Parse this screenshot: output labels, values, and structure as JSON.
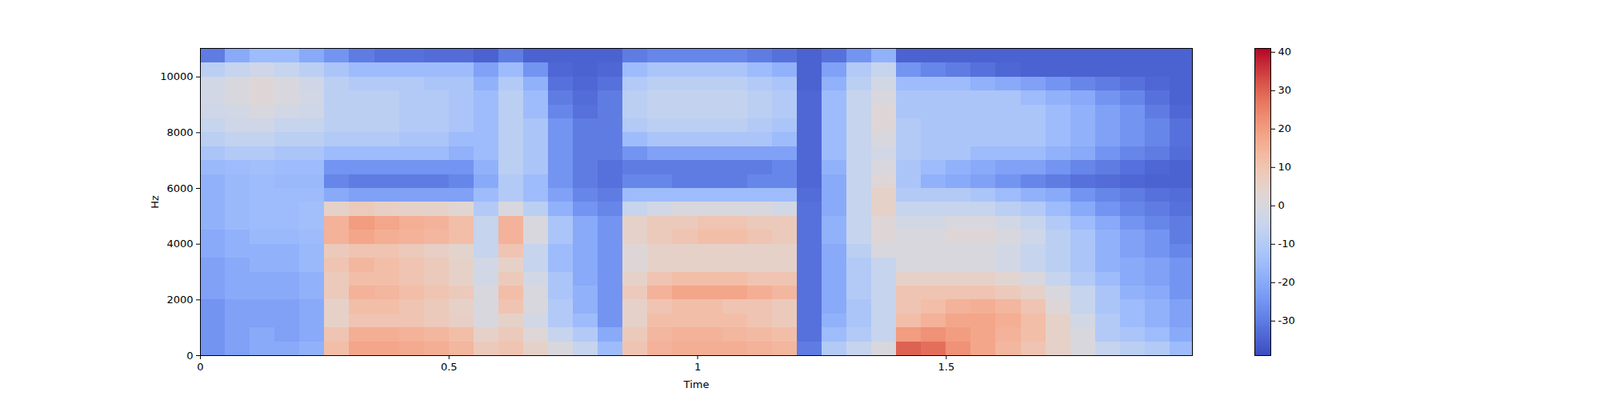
{
  "chart_data": {
    "type": "heatmap",
    "xlabel": "Time",
    "ylabel": "Hz",
    "xlim": [
      0,
      1.995
    ],
    "xticks": [
      0,
      0.5,
      1,
      1.5
    ],
    "ylim": [
      0,
      11025
    ],
    "yticks": [
      0,
      2000,
      4000,
      6000,
      8000,
      10000
    ],
    "time_bins": [
      0,
      0.05,
      0.1,
      0.15,
      0.2,
      0.25,
      0.3,
      0.35,
      0.4,
      0.45,
      0.5,
      0.55,
      0.6,
      0.65,
      0.7,
      0.75,
      0.8,
      0.85,
      0.9,
      0.95,
      1.0,
      1.05,
      1.1,
      1.15,
      1.2,
      1.25,
      1.3,
      1.35,
      1.4,
      1.45,
      1.5,
      1.55,
      1.6,
      1.65,
      1.7,
      1.75,
      1.8,
      1.85,
      1.9,
      1.95,
      1.995
    ],
    "freq_bins": [
      0,
      500,
      1000,
      1500,
      2000,
      2500,
      3000,
      3500,
      4000,
      4500,
      5000,
      5500,
      6000,
      6500,
      7000,
      7500,
      8000,
      8500,
      9000,
      9500,
      10000,
      10500,
      11025
    ],
    "cells": [
      [
        -25,
        -22,
        -20,
        -20,
        -18,
        12,
        18,
        18,
        17,
        16,
        14,
        8,
        10,
        5,
        0,
        -5,
        -15,
        10,
        15,
        16,
        16,
        16,
        15,
        14,
        -30,
        -10,
        -5,
        0,
        30,
        28,
        22,
        18,
        14,
        10,
        5,
        0,
        -5,
        -8,
        -10,
        -15
      ],
      [
        -25,
        -22,
        -20,
        -22,
        -20,
        10,
        16,
        16,
        15,
        14,
        12,
        5,
        8,
        2,
        -5,
        -10,
        -20,
        8,
        14,
        15,
        15,
        14,
        13,
        12,
        -32,
        -15,
        -10,
        -5,
        20,
        22,
        20,
        18,
        15,
        12,
        5,
        0,
        -10,
        -12,
        -15,
        -20
      ],
      [
        -25,
        -22,
        -22,
        -22,
        -20,
        5,
        10,
        10,
        10,
        8,
        6,
        0,
        5,
        -2,
        -10,
        -15,
        -25,
        5,
        12,
        12,
        12,
        12,
        10,
        8,
        -32,
        -18,
        -12,
        -5,
        12,
        15,
        18,
        18,
        16,
        12,
        5,
        -2,
        -10,
        -15,
        -18,
        -22
      ],
      [
        -25,
        -22,
        -22,
        -22,
        -20,
        5,
        12,
        12,
        10,
        8,
        5,
        0,
        10,
        0,
        -10,
        -18,
        -25,
        5,
        10,
        12,
        12,
        10,
        10,
        8,
        -32,
        -20,
        -12,
        -5,
        10,
        12,
        15,
        16,
        14,
        10,
        2,
        -5,
        -12,
        -15,
        -18,
        -22
      ],
      [
        -22,
        -20,
        -20,
        -20,
        -18,
        8,
        15,
        14,
        12,
        10,
        8,
        0,
        12,
        0,
        -12,
        -18,
        -25,
        8,
        15,
        18,
        18,
        18,
        16,
        14,
        -32,
        -20,
        -10,
        -5,
        10,
        10,
        10,
        10,
        8,
        5,
        0,
        -5,
        -12,
        -18,
        -20,
        -25
      ],
      [
        -22,
        -20,
        -20,
        -20,
        -18,
        8,
        12,
        12,
        10,
        8,
        5,
        -2,
        8,
        -2,
        -12,
        -20,
        -25,
        5,
        10,
        12,
        12,
        12,
        10,
        10,
        -32,
        -20,
        -10,
        -5,
        5,
        5,
        5,
        5,
        3,
        0,
        -5,
        -10,
        -15,
        -20,
        -22,
        -25
      ],
      [
        -22,
        -20,
        -18,
        -18,
        -16,
        10,
        14,
        12,
        10,
        8,
        5,
        -2,
        5,
        -5,
        -15,
        -20,
        -25,
        2,
        5,
        5,
        5,
        5,
        5,
        5,
        -32,
        -20,
        -10,
        -5,
        0,
        0,
        0,
        0,
        -2,
        -5,
        -8,
        -12,
        -18,
        -20,
        -22,
        -25
      ],
      [
        -20,
        -18,
        -18,
        -18,
        -16,
        8,
        10,
        10,
        8,
        6,
        4,
        -5,
        10,
        -5,
        -15,
        -20,
        -25,
        2,
        5,
        5,
        5,
        5,
        5,
        5,
        -32,
        -20,
        -8,
        0,
        0,
        0,
        0,
        0,
        -2,
        -5,
        -8,
        -12,
        -18,
        -22,
        -25,
        -28
      ],
      [
        -20,
        -18,
        -16,
        -16,
        -15,
        15,
        18,
        16,
        15,
        14,
        12,
        -5,
        15,
        0,
        -12,
        -20,
        -25,
        5,
        8,
        10,
        12,
        12,
        10,
        8,
        -32,
        -18,
        -5,
        2,
        0,
        0,
        2,
        2,
        0,
        -3,
        -8,
        -12,
        -18,
        -22,
        -25,
        -30
      ],
      [
        -18,
        -16,
        -15,
        -15,
        -14,
        15,
        20,
        18,
        16,
        15,
        12,
        -5,
        15,
        0,
        -12,
        -20,
        -25,
        5,
        8,
        8,
        10,
        10,
        8,
        8,
        -32,
        -18,
        -5,
        2,
        -2,
        -2,
        0,
        0,
        -2,
        -5,
        -10,
        -15,
        -20,
        -25,
        -28,
        -30
      ],
      [
        -18,
        -16,
        -15,
        -15,
        -14,
        5,
        8,
        6,
        5,
        5,
        3,
        -10,
        0,
        -8,
        -18,
        -25,
        -28,
        -5,
        -2,
        0,
        0,
        0,
        0,
        -2,
        -32,
        -20,
        -5,
        5,
        -5,
        -5,
        -5,
        -5,
        -8,
        -10,
        -15,
        -20,
        -25,
        -28,
        -30,
        -32
      ],
      [
        -18,
        -16,
        -15,
        -15,
        -15,
        -20,
        -22,
        -22,
        -22,
        -22,
        -22,
        -15,
        -10,
        -15,
        -22,
        -28,
        -30,
        -15,
        -15,
        -15,
        -15,
        -15,
        -15,
        -15,
        -33,
        -20,
        -5,
        5,
        -10,
        -10,
        -10,
        -12,
        -15,
        -18,
        -20,
        -25,
        -28,
        -30,
        -32,
        -33
      ],
      [
        -18,
        -16,
        -15,
        -16,
        -16,
        -28,
        -30,
        -30,
        -30,
        -30,
        -28,
        -20,
        -10,
        -15,
        -25,
        -30,
        -32,
        -28,
        -28,
        -30,
        -30,
        -30,
        -28,
        -28,
        -34,
        -20,
        -5,
        2,
        -12,
        -18,
        -20,
        -22,
        -25,
        -28,
        -30,
        -32,
        -33,
        -34,
        -35,
        -35
      ],
      [
        -16,
        -15,
        -14,
        -15,
        -15,
        -25,
        -25,
        -25,
        -25,
        -25,
        -25,
        -18,
        -8,
        -12,
        -25,
        -30,
        -32,
        -30,
        -30,
        -30,
        -30,
        -30,
        -30,
        -28,
        -34,
        -18,
        -5,
        0,
        -12,
        -15,
        -18,
        -20,
        -22,
        -22,
        -25,
        -28,
        -30,
        -32,
        -34,
        -35
      ],
      [
        -12,
        -10,
        -10,
        -12,
        -12,
        -15,
        -15,
        -15,
        -15,
        -15,
        -18,
        -15,
        -8,
        -12,
        -25,
        -30,
        -30,
        -25,
        -22,
        -22,
        -22,
        -22,
        -22,
        -22,
        -34,
        -15,
        -5,
        -2,
        -10,
        -12,
        -12,
        -15,
        -15,
        -15,
        -18,
        -20,
        -25,
        -28,
        -30,
        -33
      ],
      [
        -8,
        -6,
        -6,
        -8,
        -8,
        -10,
        -10,
        -10,
        -12,
        -12,
        -15,
        -15,
        -8,
        -12,
        -25,
        -30,
        -30,
        -15,
        -12,
        -12,
        -12,
        -12,
        -12,
        -15,
        -34,
        -15,
        -5,
        0,
        -10,
        -12,
        -12,
        -12,
        -12,
        -12,
        -15,
        -18,
        -22,
        -25,
        -28,
        -32
      ],
      [
        -5,
        -3,
        -3,
        -5,
        -5,
        -8,
        -8,
        -8,
        -10,
        -10,
        -12,
        -15,
        -8,
        -12,
        -25,
        -30,
        -30,
        -10,
        -8,
        -8,
        -8,
        -8,
        -10,
        -12,
        -34,
        -15,
        -5,
        2,
        -10,
        -12,
        -12,
        -12,
        -12,
        -12,
        -15,
        -18,
        -22,
        -25,
        -28,
        -32
      ],
      [
        -3,
        -2,
        0,
        -2,
        -3,
        -8,
        -8,
        -8,
        -10,
        -10,
        -12,
        -15,
        -8,
        -15,
        -28,
        -32,
        -30,
        -8,
        -6,
        -6,
        -6,
        -6,
        -8,
        -10,
        -34,
        -15,
        -5,
        2,
        -12,
        -12,
        -12,
        -12,
        -12,
        -12,
        -15,
        -18,
        -22,
        -25,
        -30,
        -34
      ],
      [
        -2,
        0,
        2,
        0,
        -2,
        -8,
        -8,
        -8,
        -10,
        -10,
        -12,
        -15,
        -8,
        -15,
        -30,
        -33,
        -30,
        -8,
        -6,
        -6,
        -6,
        -6,
        -8,
        -10,
        -34,
        -15,
        -5,
        0,
        -12,
        -12,
        -12,
        -12,
        -12,
        -15,
        -18,
        -20,
        -25,
        -28,
        -32,
        -35
      ],
      [
        -2,
        0,
        2,
        0,
        -3,
        -8,
        -10,
        -10,
        -10,
        -12,
        -12,
        -18,
        -10,
        -18,
        -32,
        -34,
        -32,
        -10,
        -8,
        -8,
        -8,
        -8,
        -10,
        -12,
        -35,
        -18,
        -8,
        -2,
        -15,
        -15,
        -15,
        -18,
        -20,
        -22,
        -25,
        -28,
        -30,
        -32,
        -34,
        -35
      ],
      [
        -8,
        -5,
        -3,
        -5,
        -8,
        -12,
        -15,
        -15,
        -15,
        -15,
        -15,
        -22,
        -15,
        -25,
        -34,
        -35,
        -34,
        -15,
        -12,
        -12,
        -12,
        -12,
        -15,
        -18,
        -35,
        -22,
        -10,
        -5,
        -25,
        -28,
        -30,
        -32,
        -34,
        -35,
        -35,
        -35,
        -35,
        -35,
        -35,
        -35
      ],
      [
        -30,
        -20,
        -15,
        -15,
        -20,
        -25,
        -30,
        -32,
        -32,
        -33,
        -33,
        -35,
        -30,
        -35,
        -35,
        -35,
        -35,
        -30,
        -28,
        -28,
        -28,
        -28,
        -30,
        -32,
        -35,
        -32,
        -25,
        -18,
        -35,
        -35,
        -35,
        -35,
        -35,
        -35,
        -35,
        -35,
        -35,
        -35,
        -35,
        -35
      ]
    ],
    "colorbar": {
      "range": [
        -39,
        41
      ],
      "ticks": [
        -30,
        -20,
        -10,
        0,
        10,
        20,
        30,
        40
      ]
    }
  }
}
